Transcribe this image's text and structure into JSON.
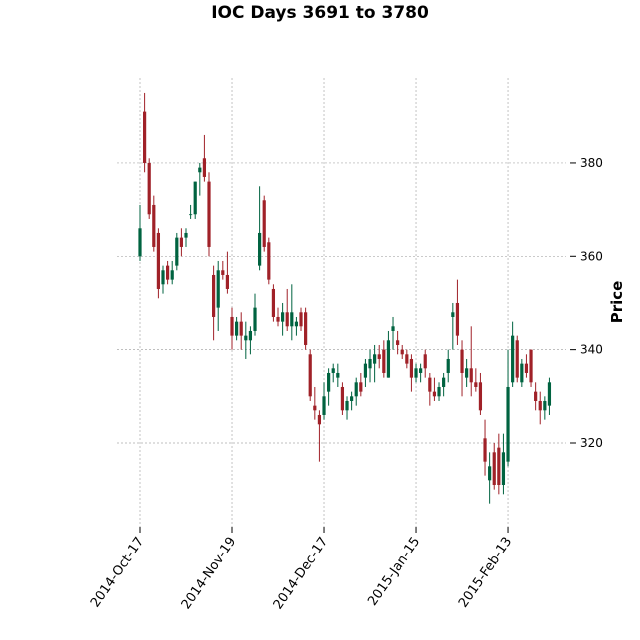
{
  "chart_data": {
    "type": "candlestick",
    "title": "IOC Days 3691 to 3780",
    "ylabel": "Price",
    "x": [
      "2014-Oct-17",
      null,
      null,
      null,
      null,
      null,
      null,
      null,
      null,
      null,
      null,
      null,
      null,
      null,
      null,
      null,
      null,
      null,
      null,
      null,
      "2014-Nov-19",
      null,
      null,
      null,
      null,
      null,
      null,
      null,
      null,
      null,
      null,
      null,
      null,
      null,
      null,
      null,
      null,
      null,
      null,
      null,
      "2014-Dec-17",
      null,
      null,
      null,
      null,
      null,
      null,
      null,
      null,
      null,
      null,
      null,
      null,
      null,
      null,
      null,
      null,
      null,
      null,
      null,
      "2015-Jan-15",
      null,
      null,
      null,
      null,
      null,
      null,
      null,
      null,
      null,
      null,
      null,
      null,
      null,
      null,
      null,
      null,
      null,
      null,
      null,
      "2015-Feb-13",
      null,
      null,
      null,
      null,
      null,
      null,
      null,
      null,
      null
    ],
    "open": [
      360,
      391,
      380,
      371,
      365,
      354,
      358,
      355,
      358,
      364,
      364,
      369,
      369,
      378,
      381,
      376,
      356,
      349,
      357,
      356,
      347,
      343,
      346,
      342,
      342,
      344,
      358,
      372,
      363,
      353,
      347,
      346,
      348,
      345,
      345,
      348,
      348,
      339,
      328,
      326,
      326,
      331,
      335,
      334,
      332,
      327,
      329,
      330,
      333,
      334,
      336,
      337,
      339,
      340,
      334,
      344,
      342,
      340,
      339,
      338,
      334,
      335,
      339,
      334,
      331,
      330,
      332,
      335,
      347,
      350,
      340,
      334,
      336,
      333,
      333,
      321,
      312,
      318,
      319,
      311,
      316,
      333,
      342,
      333,
      337,
      340,
      331,
      329,
      327,
      328
    ],
    "high": [
      371,
      395,
      381,
      373,
      366,
      358,
      359,
      359,
      365,
      366,
      366,
      371,
      376,
      380,
      386,
      378,
      358,
      359,
      359,
      361,
      349,
      347,
      348,
      346,
      345,
      352,
      375,
      373,
      364,
      354,
      349,
      350,
      353,
      354,
      347,
      349,
      349,
      340,
      332,
      327,
      333,
      336,
      337,
      337,
      333,
      330,
      331,
      334,
      335,
      338,
      340,
      341,
      341,
      342,
      344,
      347,
      344,
      341,
      340,
      339,
      337,
      337,
      340,
      335,
      334,
      333,
      335,
      340,
      350,
      355,
      342,
      338,
      345,
      336,
      335,
      325,
      318,
      320,
      322,
      322,
      340,
      346,
      343,
      338,
      339,
      340,
      333,
      331,
      330,
      334
    ],
    "low": [
      359,
      378,
      368,
      361,
      351,
      352,
      354,
      354,
      357,
      360,
      362,
      368,
      368,
      373,
      376,
      360,
      342,
      344,
      355,
      352,
      340,
      342,
      340,
      338,
      339,
      343,
      357,
      361,
      354,
      346,
      345,
      343,
      344,
      342,
      343,
      344,
      340,
      329,
      325,
      316,
      325,
      328,
      333,
      332,
      326,
      325,
      327,
      328,
      330,
      332,
      333,
      333,
      336,
      334,
      334,
      340,
      339,
      338,
      336,
      331,
      333,
      333,
      334,
      328,
      329,
      329,
      330,
      333,
      340,
      341,
      330,
      332,
      330,
      331,
      326,
      313,
      307,
      310,
      309,
      309,
      315,
      332,
      333,
      332,
      334,
      332,
      327,
      324,
      325,
      326
    ],
    "close": [
      366,
      380,
      369,
      362,
      353,
      357,
      355,
      357,
      364,
      362,
      365,
      369,
      376,
      379,
      377,
      362,
      347,
      357,
      356,
      353,
      343,
      346,
      343,
      343,
      344,
      349,
      365,
      362,
      355,
      347,
      346,
      348,
      345,
      348,
      346,
      345,
      341,
      330,
      327,
      324,
      330,
      335,
      336,
      335,
      327,
      329,
      330,
      333,
      331,
      337,
      338,
      339,
      338,
      335,
      342,
      345,
      341,
      339,
      337,
      334,
      336,
      336,
      336,
      331,
      330,
      332,
      334,
      338,
      348,
      343,
      335,
      336,
      333,
      332,
      327,
      316,
      315,
      311,
      311,
      318,
      332,
      343,
      334,
      337,
      335,
      333,
      329,
      327,
      329,
      333
    ],
    "up_color": "#006340",
    "down_color": "#a02128",
    "ylim": [
      302,
      398.2
    ],
    "yticks": [
      320,
      340,
      360,
      380
    ],
    "xlim": [
      -5,
      92.6
    ],
    "grid": true
  }
}
